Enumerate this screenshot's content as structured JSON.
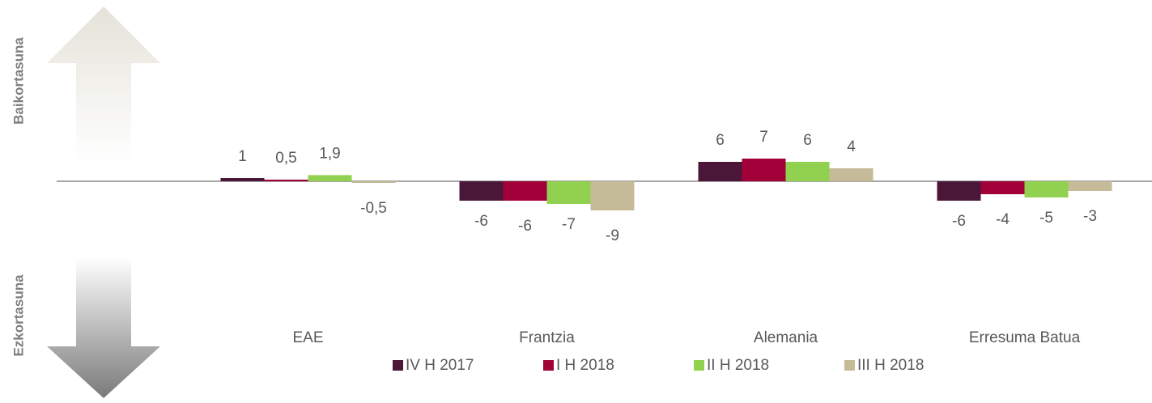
{
  "chart_data": {
    "type": "bar",
    "side_labels": {
      "top": "Baikortasuna",
      "bottom": "Ezkortasuna"
    },
    "categories": [
      "EAE",
      "Frantzia",
      "Alemania",
      "Erresuma Batua"
    ],
    "series": [
      {
        "name": "IV H 2017",
        "color": "#4b1739",
        "values": [
          1,
          -6,
          6,
          -6
        ],
        "value_labels": [
          "1",
          "-6",
          "6",
          "-6"
        ]
      },
      {
        "name": "I H 2018",
        "color": "#a20038",
        "values": [
          0.5,
          -6,
          7,
          -4
        ],
        "value_labels": [
          "0,5",
          "-6",
          "7",
          "-4"
        ]
      },
      {
        "name": "II H 2018",
        "color": "#92d050",
        "values": [
          1.9,
          -7,
          6,
          -5
        ],
        "value_labels": [
          "1,9",
          "-7",
          "6",
          "-5"
        ]
      },
      {
        "name": "III H 2018",
        "color": "#c5bb98",
        "values": [
          -0.5,
          -9,
          4,
          -3
        ],
        "value_labels": [
          "-0,5",
          "-9",
          "4",
          "-3"
        ]
      }
    ],
    "ylim": [
      -50,
      50
    ]
  }
}
